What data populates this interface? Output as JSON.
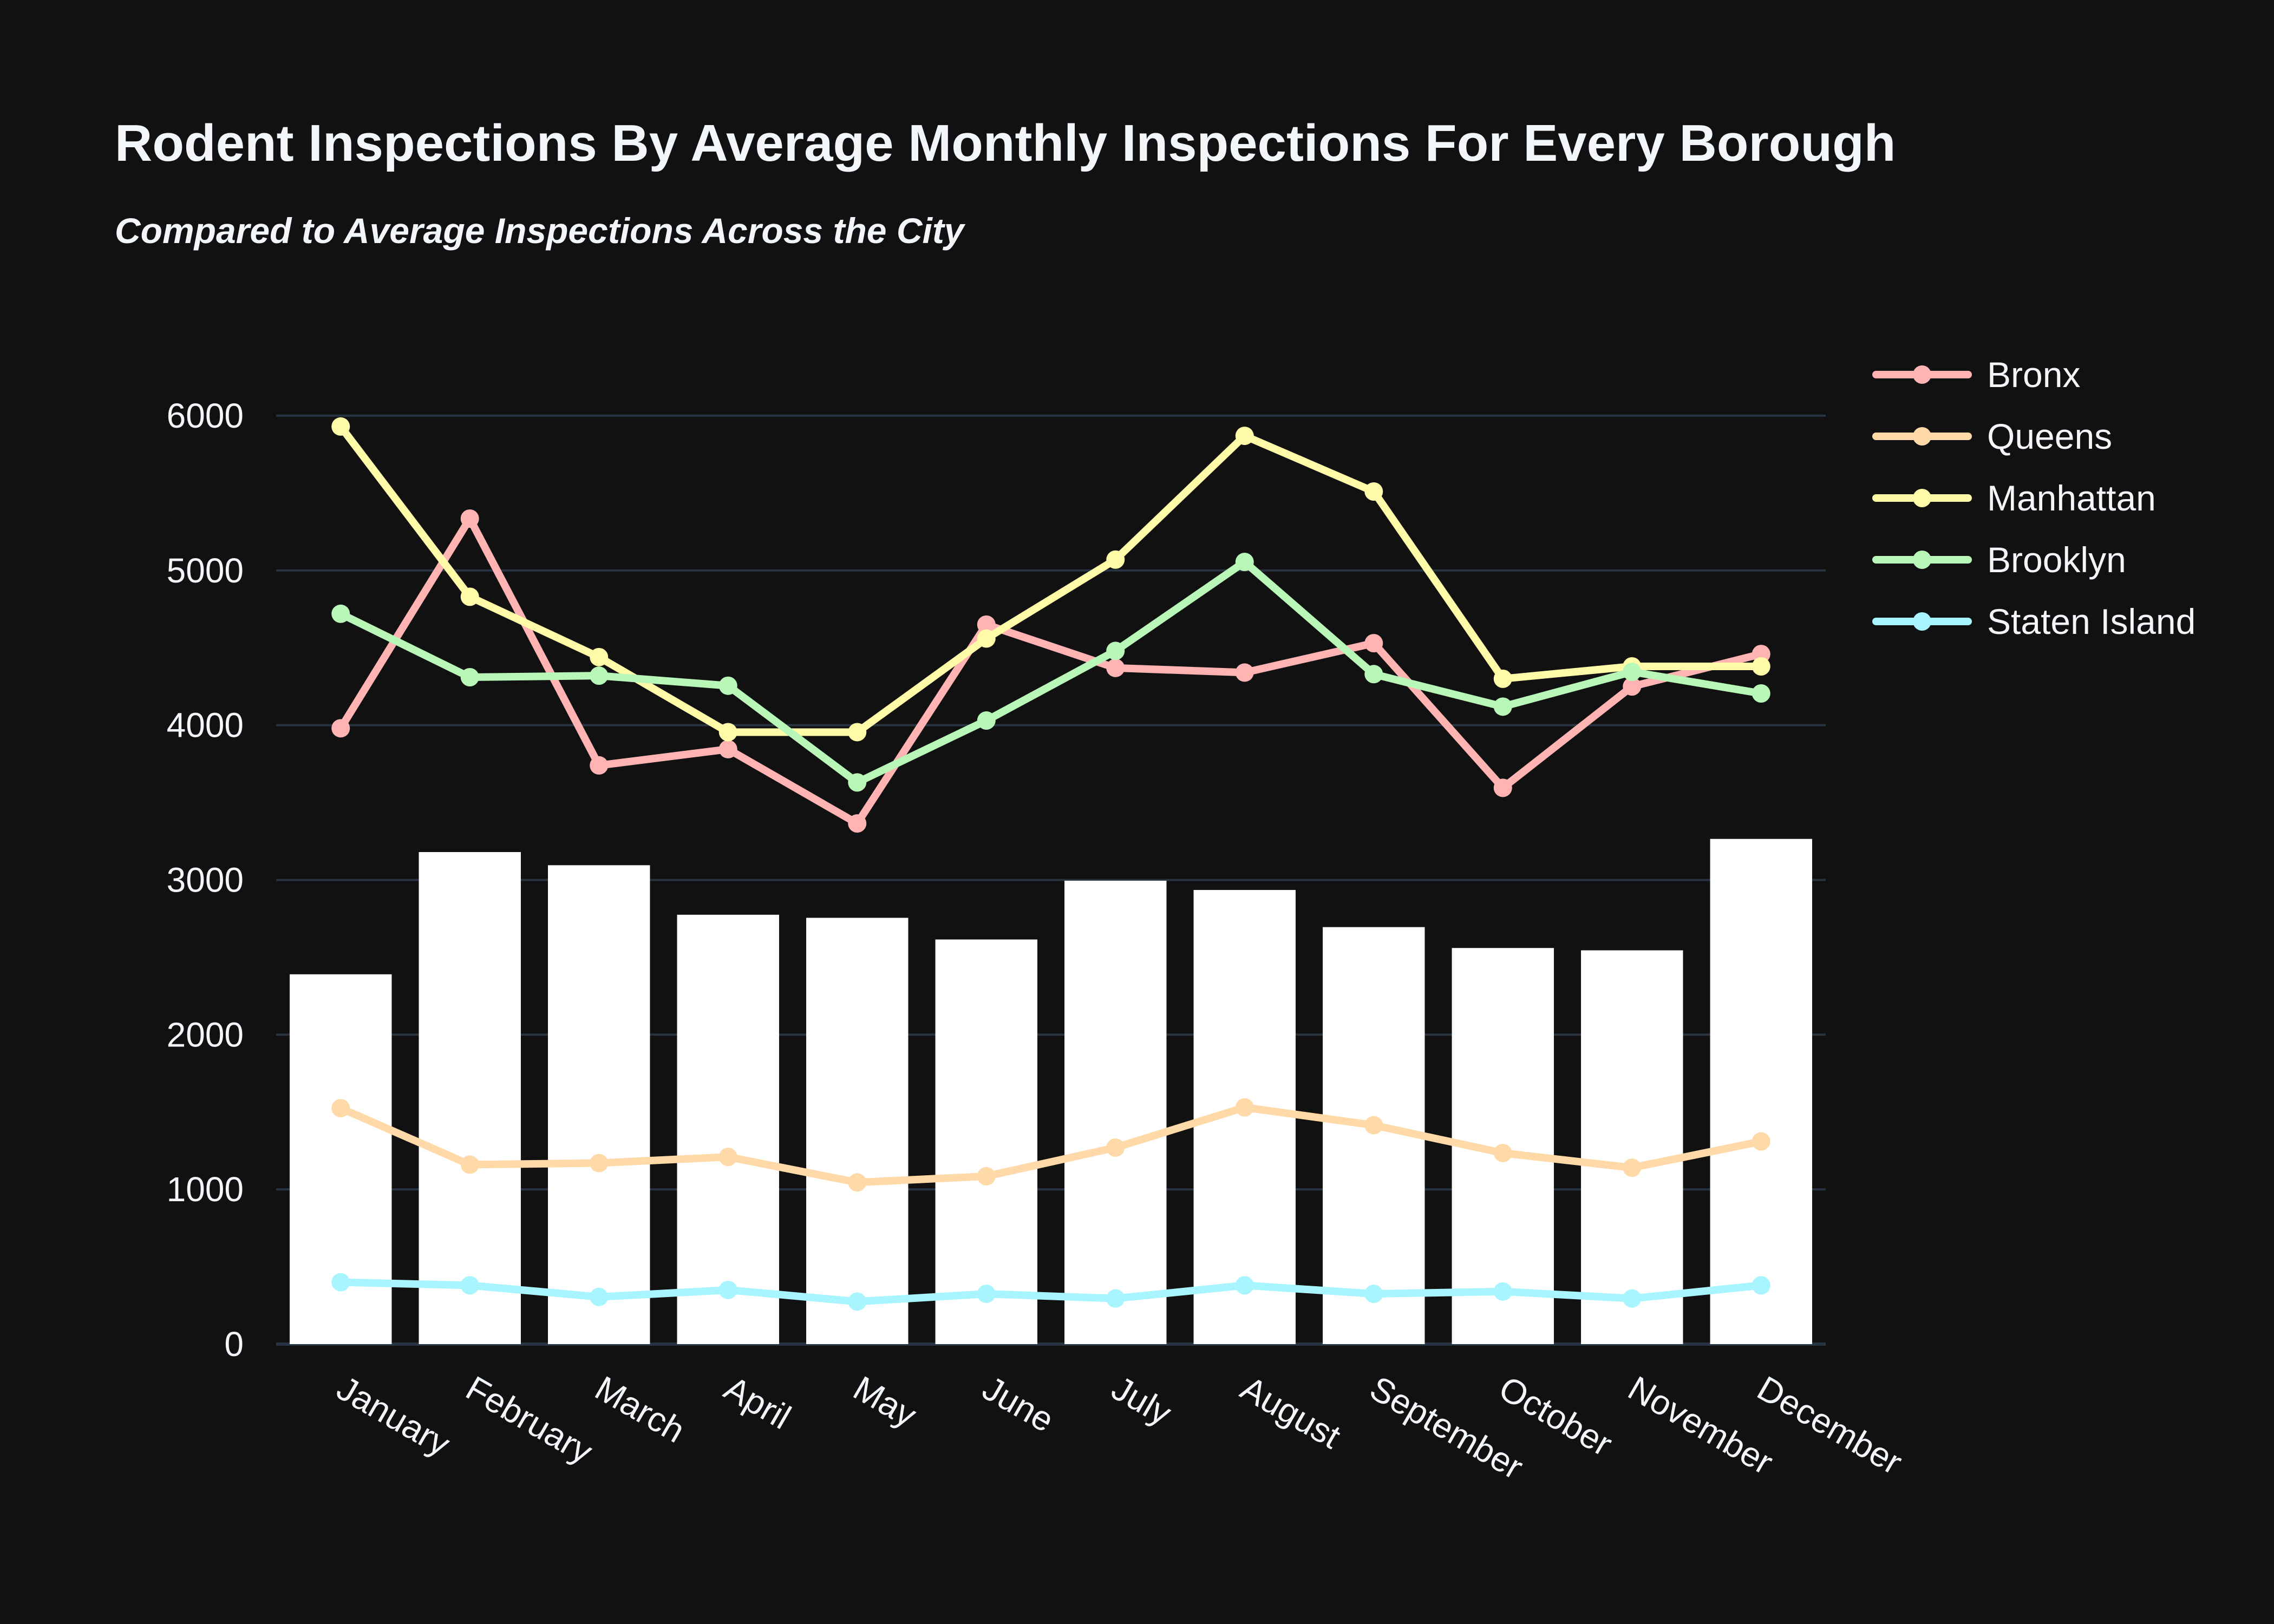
{
  "chart_data": {
    "type": "bar",
    "title": "Rodent Inspections By Average Monthly Inspections For Every Borough",
    "subtitle": "Compared to Average Inspections Across the City",
    "xlabel": "",
    "ylabel": "",
    "ylim": [
      0,
      6500
    ],
    "yticks": [
      0,
      1000,
      2000,
      3000,
      4000,
      5000,
      6000
    ],
    "grid": true,
    "legend_position": "right",
    "categories": [
      "January",
      "February",
      "March",
      "April",
      "May",
      "June",
      "July",
      "August",
      "September",
      "October",
      "November",
      "December"
    ],
    "bars": {
      "values": [
        2390,
        3180,
        3095,
        2775,
        2755,
        2615,
        2995,
        2935,
        2695,
        2560,
        2545,
        3265
      ],
      "color": "#ffffff"
    },
    "series": [
      {
        "name": "Bronx",
        "type": "line",
        "color": "#ffb3b3",
        "values": [
          3980,
          5335,
          3740,
          3845,
          3365,
          4650,
          4370,
          4340,
          4530,
          3595,
          4250,
          4460
        ]
      },
      {
        "name": "Queens",
        "type": "line",
        "color": "#ffd9a8",
        "values": [
          1525,
          1160,
          1170,
          1210,
          1045,
          1085,
          1270,
          1530,
          1415,
          1235,
          1140,
          1310
        ]
      },
      {
        "name": "Manhattan",
        "type": "line",
        "color": "#fffaa8",
        "values": [
          5930,
          4830,
          4440,
          3955,
          3955,
          4560,
          5070,
          5870,
          5510,
          4300,
          4380,
          4380
        ]
      },
      {
        "name": "Brooklyn",
        "type": "line",
        "color": "#b8f7b8",
        "values": [
          4720,
          4310,
          4320,
          4255,
          3630,
          4030,
          4480,
          5055,
          4330,
          4120,
          4345,
          4205
        ]
      },
      {
        "name": "Staten Island",
        "type": "line",
        "color": "#a8f5ff",
        "values": [
          400,
          380,
          305,
          350,
          275,
          325,
          295,
          380,
          325,
          340,
          295,
          380
        ]
      }
    ]
  }
}
